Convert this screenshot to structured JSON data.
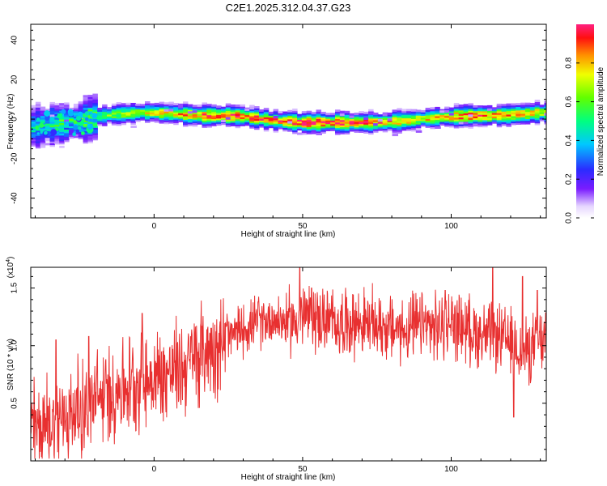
{
  "title": "C2E1.2025.312.04.37.G23",
  "chart_data": [
    {
      "type": "heatmap",
      "name": "spectrogram",
      "xlabel": "Height of straight line (km)",
      "ylabel": "Frequency (Hz)",
      "xlim": [
        -41.5,
        132
      ],
      "ylim": [
        -50,
        48
      ],
      "xticks": [
        0,
        50,
        100
      ],
      "yticks": [
        -40,
        -20,
        0,
        20,
        40
      ],
      "ridge": {
        "x": [
          -40,
          -35,
          -30,
          -25,
          -20,
          -15,
          -10,
          -5,
          0,
          5,
          10,
          15,
          20,
          25,
          30,
          35,
          40,
          45,
          50,
          55,
          60,
          65,
          70,
          75,
          80,
          85,
          90,
          95,
          100,
          105,
          110,
          115,
          120,
          125,
          130
        ],
        "freq": [
          -4,
          -3,
          -2,
          -1,
          1,
          2,
          2.5,
          3,
          3,
          2.5,
          2,
          1.5,
          1.5,
          1.5,
          1,
          0,
          -1,
          -1.5,
          -2,
          -2,
          -2,
          -2,
          -2,
          -2,
          -1.5,
          -1,
          0,
          0.5,
          1,
          1.5,
          1.5,
          1.5,
          2,
          2.5,
          3
        ],
        "amplitude": [
          0.4,
          0.45,
          0.5,
          0.5,
          0.55,
          0.6,
          0.65,
          0.7,
          0.75,
          0.75,
          0.8,
          0.85,
          0.9,
          0.95,
          0.9,
          0.85,
          0.85,
          0.9,
          0.95,
          0.95,
          0.9,
          0.9,
          0.9,
          0.85,
          0.8,
          0.75,
          0.75,
          0.8,
          0.85,
          0.9,
          0.9,
          0.85,
          0.8,
          0.8,
          0.75
        ]
      }
    },
    {
      "type": "line",
      "name": "snr",
      "xlabel": "Height of straight line (km)",
      "ylabel": "SNR (10 * v/v)",
      "scale_label": "(x10",
      "scale_exp": "4",
      "xlim": [
        -41.5,
        132
      ],
      "ylim": [
        0.0,
        1.68
      ],
      "xticks": [
        0,
        50,
        100
      ],
      "yticks": [
        0.5,
        1.0,
        1.5
      ],
      "series_color": "#e83030",
      "trend": {
        "x": [
          -41.5,
          -35,
          -30,
          -25,
          -20,
          -15,
          -10,
          -5,
          0,
          5,
          10,
          15,
          20,
          25,
          30,
          35,
          40,
          45,
          50,
          55,
          60,
          65,
          70,
          75,
          80,
          85,
          90,
          95,
          100,
          105,
          110,
          115,
          120,
          125,
          132
        ],
        "y": [
          0.28,
          0.32,
          0.38,
          0.45,
          0.52,
          0.58,
          0.65,
          0.7,
          0.72,
          0.76,
          0.82,
          0.92,
          1.0,
          1.06,
          1.15,
          1.2,
          1.24,
          1.2,
          1.25,
          1.24,
          1.2,
          1.2,
          1.2,
          1.18,
          1.15,
          1.13,
          1.18,
          1.15,
          1.2,
          1.15,
          1.1,
          1.08,
          1.02,
          0.95,
          1.05
        ]
      },
      "peaks": [
        {
          "x": -33,
          "y": 1.05
        },
        {
          "x": -22,
          "y": 1.08
        },
        {
          "x": -4,
          "y": 1.28
        },
        {
          "x": 35,
          "y": 1.38
        },
        {
          "x": 49,
          "y": 1.68
        },
        {
          "x": 53,
          "y": 1.5
        },
        {
          "x": 98,
          "y": 1.48
        },
        {
          "x": 114,
          "y": 1.68
        },
        {
          "x": 124,
          "y": 1.6
        },
        {
          "x": 121,
          "y": 0.38
        },
        {
          "x": 129,
          "y": 1.48
        }
      ]
    }
  ],
  "colorbar": {
    "label": "Normalized spectral amplitude",
    "ticks": [
      0.0,
      0.2,
      0.4,
      0.6,
      0.8
    ],
    "tick_labels": [
      "0.0",
      "0.2",
      "0.4",
      "0.6",
      "0.8"
    ]
  }
}
